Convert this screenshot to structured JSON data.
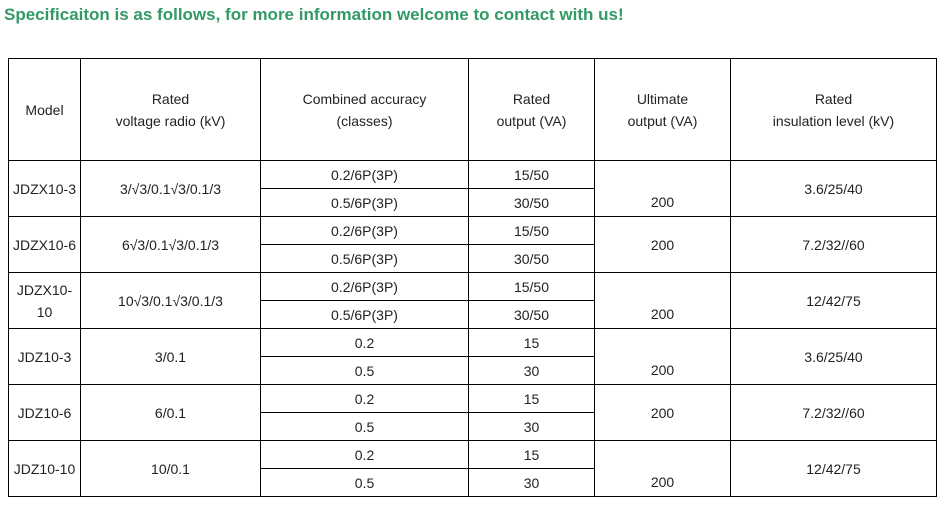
{
  "heading": "Specificaiton is as follows, for more information welcome to contact with us!",
  "colors": {
    "heading": "#339966",
    "border": "#000000"
  },
  "headers": {
    "model": "Model",
    "voltage": [
      "Rated",
      "voltage radio (kV)"
    ],
    "accuracy": [
      "Combined accuracy",
      "(classes)"
    ],
    "output": [
      "Rated",
      "output (VA)"
    ],
    "ultimate": [
      "Ultimate",
      "output (VA)"
    ],
    "insulation": [
      "Rated",
      "insulation level (kV)"
    ]
  },
  "models": [
    {
      "model": "JDZX10-3",
      "voltage": "3/√3/0.1√3/0.1/3",
      "insulation": "3.6/25/40",
      "rows": [
        {
          "accuracy": "0.2/6P(3P)",
          "output": "15/50"
        },
        {
          "accuracy": "0.5/6P(3P)",
          "output": "30/50"
        }
      ],
      "ultimate": "200"
    },
    {
      "model": "JDZX10-6",
      "voltage": "6√3/0.1√3/0.1/3",
      "insulation": "7.2/32//60",
      "rows": [
        {
          "accuracy": "0.2/6P(3P)",
          "output": "15/50"
        },
        {
          "accuracy": "0.5/6P(3P)",
          "output": "30/50"
        }
      ],
      "ultimate": "200"
    },
    {
      "model": "JDZX10-10",
      "voltage": "10√3/0.1√3/0.1/3",
      "insulation": "12/42/75",
      "rows": [
        {
          "accuracy": "0.2/6P(3P)",
          "output": "15/50"
        },
        {
          "accuracy": "0.5/6P(3P)",
          "output": "30/50"
        }
      ],
      "ultimate": "200"
    },
    {
      "model": "JDZ10-3",
      "voltage": "3/0.1",
      "insulation": "3.6/25/40",
      "rows": [
        {
          "accuracy": "0.2",
          "output": "15"
        },
        {
          "accuracy": "0.5",
          "output": "30"
        }
      ],
      "ultimate": "200"
    },
    {
      "model": "JDZ10-6",
      "voltage": "6/0.1",
      "insulation": "7.2/32//60",
      "rows": [
        {
          "accuracy": "0.2",
          "output": "15"
        },
        {
          "accuracy": "0.5",
          "output": "30"
        }
      ],
      "ultimate": "200"
    },
    {
      "model": "JDZ10-10",
      "voltage": "10/0.1",
      "insulation": "12/42/75",
      "rows": [
        {
          "accuracy": "0.2",
          "output": "15"
        },
        {
          "accuracy": "0.5",
          "output": "30"
        }
      ],
      "ultimate": "200"
    }
  ]
}
